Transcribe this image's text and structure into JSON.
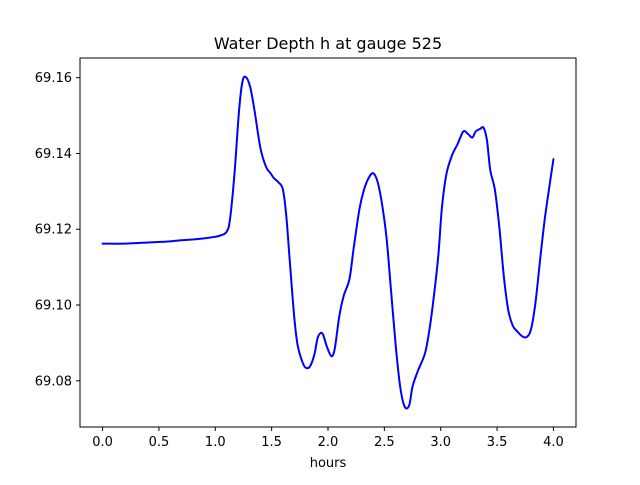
{
  "chart_data": {
    "type": "line",
    "title": "Water Depth h at gauge 525",
    "xlabel": "hours",
    "ylabel": "",
    "xlim": [
      -0.2,
      4.2
    ],
    "ylim": [
      69.0678,
      69.1652
    ],
    "grid": false,
    "x_ticks": [
      0.0,
      0.5,
      1.0,
      1.5,
      2.0,
      2.5,
      3.0,
      3.5,
      4.0
    ],
    "x_tick_labels": [
      "0.0",
      "0.5",
      "1.0",
      "1.5",
      "2.0",
      "2.5",
      "3.0",
      "3.5",
      "4.0"
    ],
    "y_ticks": [
      69.08,
      69.1,
      69.12,
      69.14,
      69.16
    ],
    "y_tick_labels": [
      "69.08",
      "69.10",
      "69.12",
      "69.14",
      "69.16"
    ],
    "line_color": "#0000ff",
    "series": [
      {
        "x": [
          0.0,
          0.2,
          0.4,
          0.6,
          0.7,
          0.8,
          0.9,
          1.0,
          1.05,
          1.1,
          1.13,
          1.17,
          1.21,
          1.24,
          1.27,
          1.31,
          1.35,
          1.4,
          1.45,
          1.49,
          1.52,
          1.56,
          1.6,
          1.63,
          1.66,
          1.7,
          1.73,
          1.77,
          1.8,
          1.84,
          1.88,
          1.91,
          1.95,
          1.99,
          2.03,
          2.06,
          2.1,
          2.14,
          2.19,
          2.23,
          2.28,
          2.32,
          2.36,
          2.4,
          2.44,
          2.48,
          2.52,
          2.56,
          2.6,
          2.64,
          2.68,
          2.72,
          2.75,
          2.8,
          2.86,
          2.9,
          2.94,
          2.98,
          3.01,
          3.05,
          3.1,
          3.15,
          3.2,
          3.24,
          3.28,
          3.31,
          3.35,
          3.38,
          3.41,
          3.44,
          3.48,
          3.52,
          3.56,
          3.6,
          3.64,
          3.68,
          3.72,
          3.76,
          3.8,
          3.84,
          3.88,
          3.92,
          3.96,
          4.0
        ],
        "y": [
          69.1162,
          69.1162,
          69.1165,
          69.1168,
          69.1171,
          69.1173,
          69.1176,
          69.118,
          69.1184,
          69.1193,
          69.1225,
          69.1345,
          69.151,
          69.1588,
          69.1602,
          69.1575,
          69.151,
          69.1415,
          69.1365,
          69.1348,
          69.1335,
          69.1324,
          69.1305,
          69.1235,
          69.112,
          69.097,
          69.0895,
          69.0852,
          69.0835,
          69.0838,
          69.087,
          69.0915,
          69.0925,
          69.089,
          69.0865,
          69.0885,
          69.097,
          69.1025,
          69.1068,
          69.1155,
          69.1255,
          69.1305,
          69.1335,
          69.1348,
          69.1325,
          69.1265,
          69.1175,
          69.1035,
          69.0895,
          69.0785,
          69.0732,
          69.0735,
          69.0785,
          69.0828,
          69.0872,
          69.0935,
          69.1025,
          69.1135,
          69.1255,
          69.1345,
          69.1395,
          69.1425,
          69.1458,
          69.1452,
          69.1442,
          69.1458,
          69.1465,
          69.1468,
          69.1435,
          69.1355,
          69.1305,
          69.1205,
          69.1075,
          69.0985,
          69.0945,
          69.093,
          69.0918,
          69.0915,
          69.0935,
          69.1005,
          69.1115,
          69.122,
          69.1305,
          69.1385
        ]
      }
    ]
  }
}
